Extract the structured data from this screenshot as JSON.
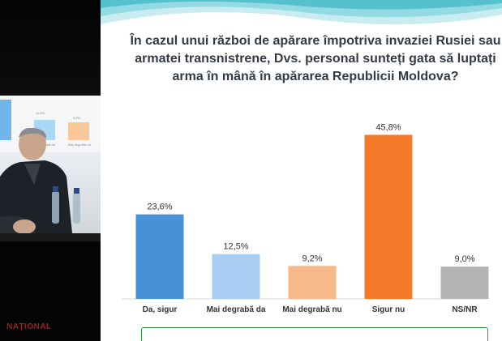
{
  "slide": {
    "title_lines": [
      "În cazul unui război de apărare împotriva invaziei Rusiei sau",
      "armatei transnistrene, Dvs. personal sunteți gata să luptați",
      "arma în mână în apărarea Republicii Moldova?"
    ]
  },
  "side_video": {
    "logo": "NAȚIONAL",
    "mini_chart_labels": [
      "Mai degrabă da",
      "Mai degrabă nu"
    ],
    "mini_chart_values": [
      "12,5%",
      "9,2%"
    ]
  },
  "chart_data": {
    "type": "bar",
    "categories": [
      "Da, sigur",
      "Mai degrabă da",
      "Mai degrabă nu",
      "Sigur nu",
      "NS/NR"
    ],
    "values": [
      23.6,
      12.5,
      9.2,
      45.8,
      9.0
    ],
    "value_labels": [
      "23,6%",
      "12,5%",
      "9,2%",
      "45,8%",
      "9,0%"
    ],
    "colors": [
      "#4a90d9",
      "#a9cdf2",
      "#f7b88a",
      "#f47a2a",
      "#b3b3b3"
    ],
    "ylim": [
      0,
      50
    ],
    "grid": false,
    "legend": "none"
  }
}
